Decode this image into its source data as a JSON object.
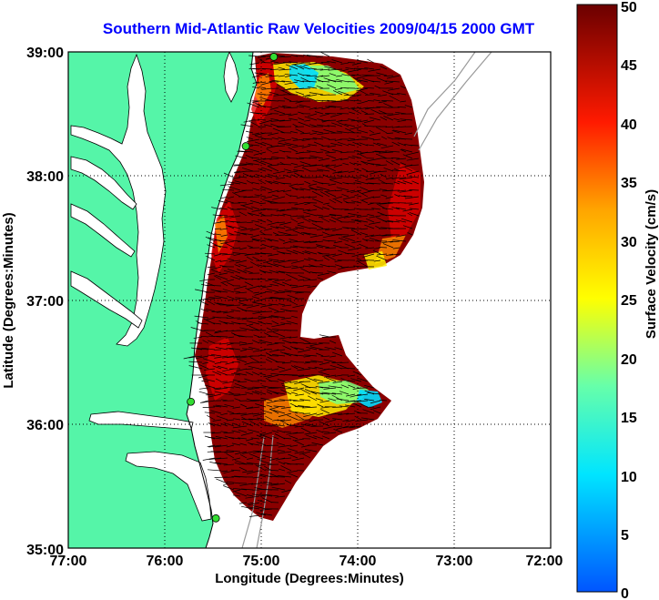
{
  "title": "Southern Mid-Atlantic Raw Velocities 2009/04/15 2000 GMT",
  "x_axis": {
    "label": "Longitude (Degrees:Minutes)",
    "ticks": [
      "77:00",
      "76:00",
      "75:00",
      "74:00",
      "73:00",
      "72:00"
    ],
    "range": [
      -77,
      -72
    ]
  },
  "y_axis": {
    "label": "Latitude (Degrees:Minutes)",
    "ticks": [
      "35:00",
      "36:00",
      "37:00",
      "38:00",
      "39:00"
    ],
    "range": [
      35,
      39
    ]
  },
  "colorbar": {
    "label": "Surface Velocity (cm/s)",
    "ticks": [
      "0",
      "5",
      "10",
      "15",
      "20",
      "25",
      "30",
      "35",
      "40",
      "45",
      "50"
    ],
    "range": [
      0,
      50
    ]
  },
  "colors": {
    "land": "#55f5a8",
    "water": "#ffffff",
    "title": "#0000ff",
    "grid": "#000000",
    "station": "#33dd33"
  },
  "stations": [
    {
      "lon": -74.87,
      "lat": 38.96
    },
    {
      "lon": -75.16,
      "lat": 38.24
    },
    {
      "lon": -75.73,
      "lat": 36.18
    },
    {
      "lon": -75.47,
      "lat": 35.24
    }
  ]
}
